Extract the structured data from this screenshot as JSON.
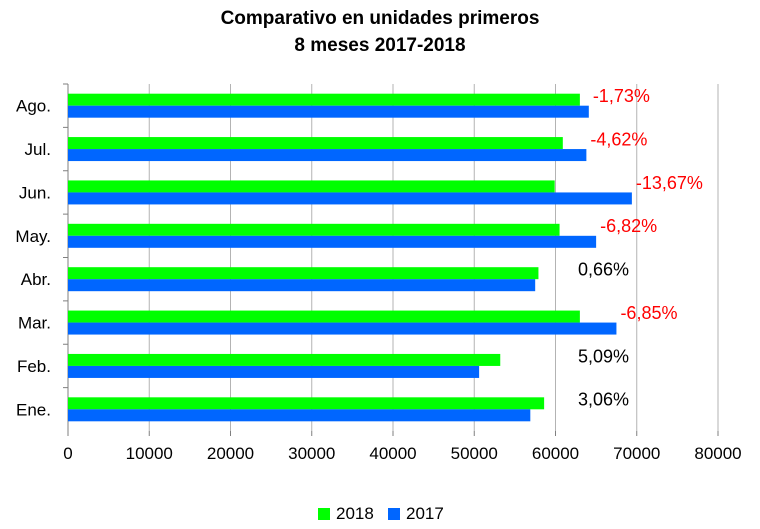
{
  "chart_data": {
    "type": "bar",
    "orientation": "horizontal",
    "title": [
      "Comparativo en unidades primeros",
      "8 meses 2017-2018"
    ],
    "categories": [
      "Ene.",
      "Feb.",
      "Mar.",
      "Abr.",
      "May.",
      "Jun.",
      "Jul.",
      "Ago."
    ],
    "series": [
      {
        "name": "2018",
        "color": "#00ff00",
        "values": [
          58600,
          53200,
          63000,
          57900,
          60500,
          59900,
          60900,
          63000
        ]
      },
      {
        "name": "2017",
        "color": "#0066ff",
        "values": [
          56900,
          50600,
          67500,
          57500,
          65000,
          69400,
          63800,
          64100
        ]
      }
    ],
    "change_labels": [
      {
        "category": "Ene.",
        "text": "3,06%",
        "color": "#000000"
      },
      {
        "category": "Feb.",
        "text": "5,09%",
        "color": "#000000"
      },
      {
        "category": "Mar.",
        "text": "-6,85%",
        "color": "#ff0000"
      },
      {
        "category": "Abr.",
        "text": "0,66%",
        "color": "#000000"
      },
      {
        "category": "May.",
        "text": "-6,82%",
        "color": "#ff0000"
      },
      {
        "category": "Jun.",
        "text": "-13,67%",
        "color": "#ff0000"
      },
      {
        "category": "Jul.",
        "text": "-4,62%",
        "color": "#ff0000"
      },
      {
        "category": "Ago.",
        "text": "-1,73%",
        "color": "#ff0000"
      }
    ],
    "xlim": [
      0,
      80000
    ],
    "xticks": [
      "0",
      "10000",
      "20000",
      "30000",
      "40000",
      "50000",
      "60000",
      "70000",
      "80000"
    ],
    "grid": true,
    "legend_position": "bottom"
  }
}
